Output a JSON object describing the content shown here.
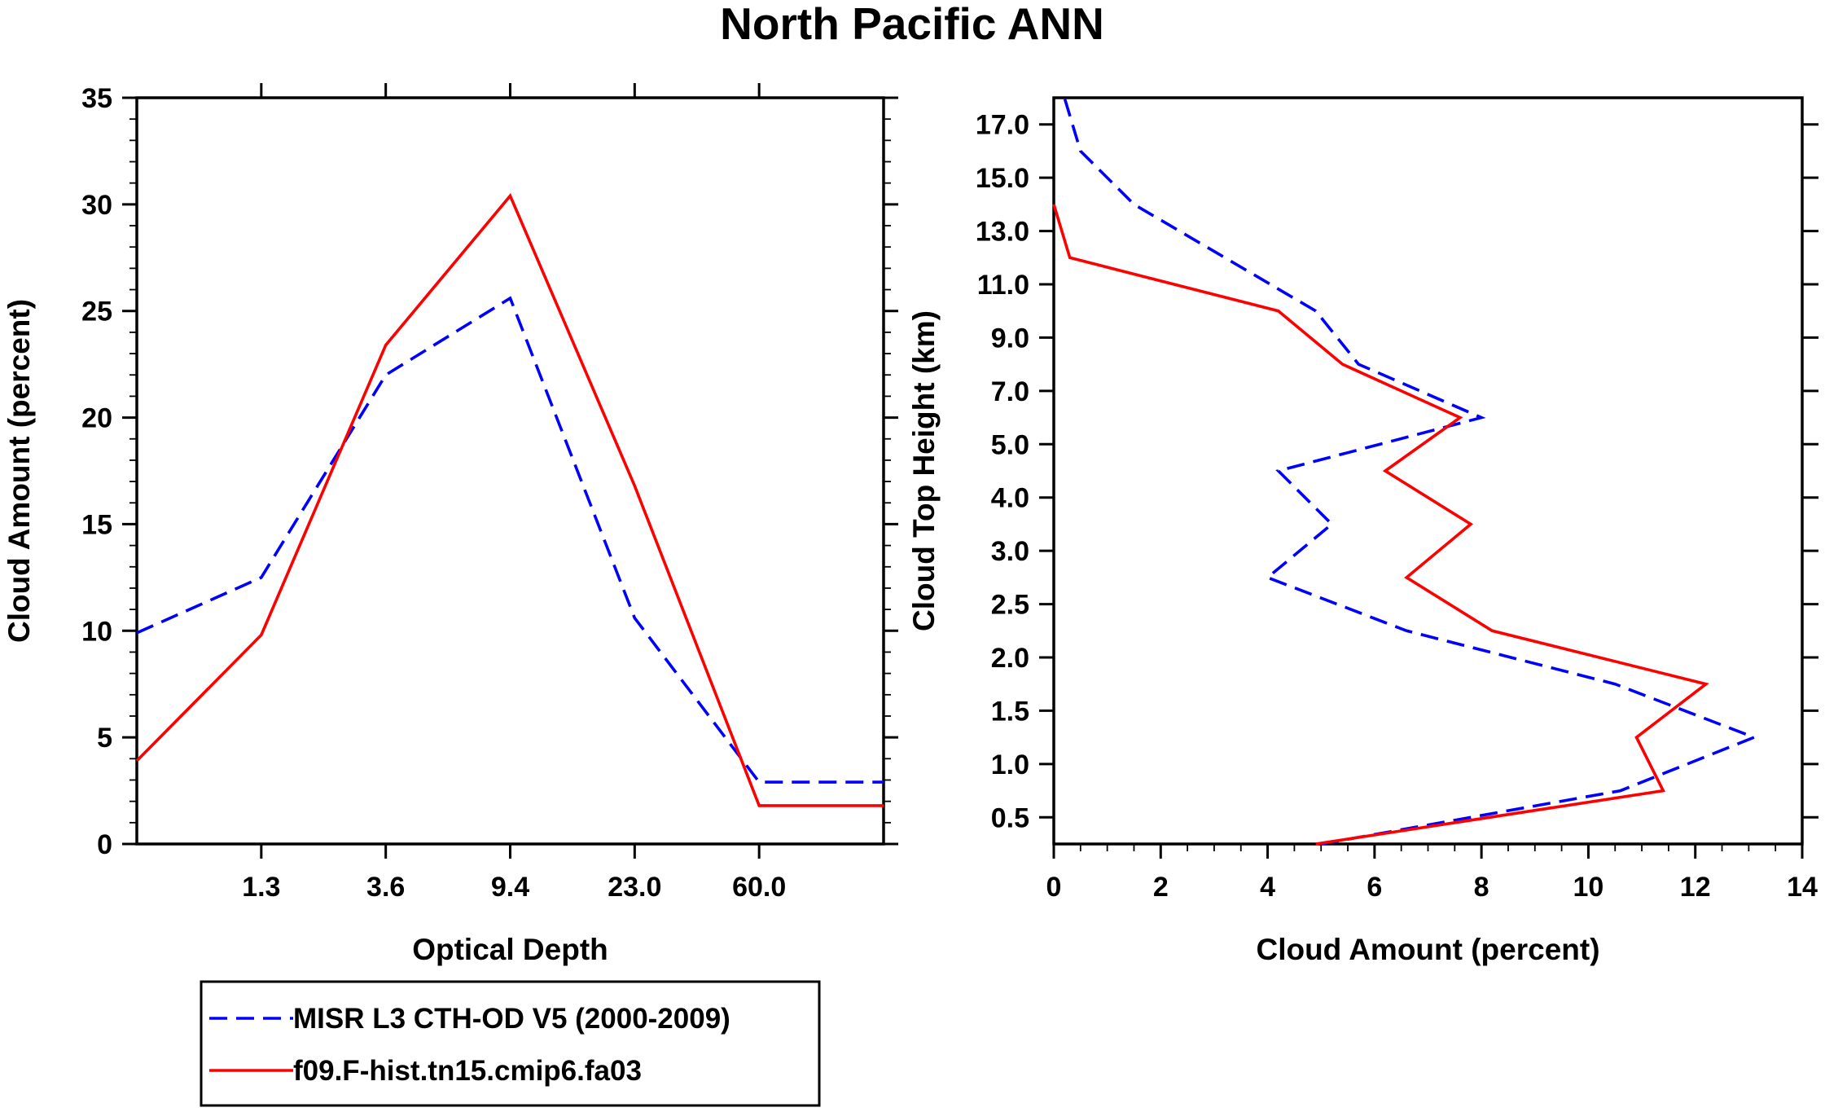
{
  "title": "North Pacific ANN",
  "colors": {
    "obs": "#0000ff",
    "model": "#ff0000",
    "axes": "#000000"
  },
  "chart_data": [
    {
      "type": "line",
      "name": "optical-depth-panel",
      "xlabel": "Optical Depth",
      "ylabel": "Cloud Amount (percent)",
      "x_bins": [
        1,
        2,
        3,
        4,
        5,
        6
      ],
      "xlim": [
        0.5,
        6.5
      ],
      "x_tick_labels": [
        "1.3",
        "3.6",
        "9.4",
        "23.0",
        "60.0"
      ],
      "x_tick_positions": [
        1.5,
        2.5,
        3.5,
        4.5,
        5.5
      ],
      "ylim": [
        0,
        35
      ],
      "y_ticks": [
        0,
        5,
        10,
        15,
        20,
        25,
        30,
        35
      ],
      "series": [
        {
          "name": "MISR L3 CTH-OD V5 (2000-2009)",
          "style": "dashed",
          "color": "#0000ff",
          "x": [
            0.5,
            1.5,
            2.5,
            3.5,
            4.5,
            5.5,
            6.5
          ],
          "y": [
            9.9,
            12.5,
            22.0,
            25.6,
            10.6,
            2.9,
            2.9
          ]
        },
        {
          "name": "f09.F-hist.tn15.cmip6.fa03",
          "style": "solid",
          "color": "#ff0000",
          "x": [
            0.5,
            1.5,
            2.5,
            3.5,
            4.5,
            5.5,
            6.5
          ],
          "y": [
            3.9,
            9.8,
            23.4,
            30.4,
            16.8,
            1.8,
            1.8
          ]
        }
      ]
    },
    {
      "type": "line",
      "name": "cloud-top-height-panel",
      "xlabel": "Cloud Amount (percent)",
      "ylabel": "Cloud Top Height (km)",
      "xlim": [
        0,
        14
      ],
      "x_ticks": [
        0,
        2,
        4,
        6,
        8,
        10,
        12,
        14
      ],
      "ylim": [
        0,
        14
      ],
      "y_tick_labels": [
        "0.5",
        "1.0",
        "1.5",
        "2.0",
        "2.5",
        "3.0",
        "4.0",
        "5.0",
        "7.0",
        "9.0",
        "11.0",
        "13.0",
        "15.0",
        "17.0"
      ],
      "y_tick_positions": [
        0.5,
        1.5,
        2.5,
        3.5,
        4.5,
        5.5,
        6.5,
        7.5,
        8.5,
        9.5,
        10.5,
        11.5,
        12.5,
        13.5
      ],
      "series": [
        {
          "name": "MISR L3 CTH-OD V5 (2000-2009)",
          "style": "dashed",
          "color": "#0000ff",
          "x": [
            5.0,
            10.6,
            13.1,
            10.5,
            6.6,
            4.0,
            5.2,
            4.2,
            8.0,
            5.7,
            4.9,
            1.5,
            0.5,
            0.2
          ],
          "y": [
            0.0,
            1.0,
            2.0,
            3.0,
            4.0,
            5.0,
            6.0,
            7.0,
            8.0,
            9.0,
            10.0,
            12.0,
            13.0,
            14.0
          ]
        },
        {
          "name": "f09.F-hist.tn15.cmip6.fa03",
          "style": "solid",
          "color": "#ff0000",
          "x": [
            4.9,
            11.4,
            10.9,
            12.2,
            8.2,
            6.6,
            7.8,
            6.2,
            7.6,
            5.4,
            4.2,
            0.3,
            0.0
          ],
          "y": [
            0.0,
            1.0,
            2.0,
            3.0,
            4.0,
            5.0,
            6.0,
            7.0,
            8.0,
            9.0,
            10.0,
            11.0,
            12.0
          ]
        }
      ]
    }
  ],
  "legend": {
    "items": [
      {
        "label": "MISR L3 CTH-OD V5 (2000-2009)",
        "style": "dashed",
        "color": "#0000ff"
      },
      {
        "label": "f09.F-hist.tn15.cmip6.fa03",
        "style": "solid",
        "color": "#ff0000"
      }
    ]
  }
}
